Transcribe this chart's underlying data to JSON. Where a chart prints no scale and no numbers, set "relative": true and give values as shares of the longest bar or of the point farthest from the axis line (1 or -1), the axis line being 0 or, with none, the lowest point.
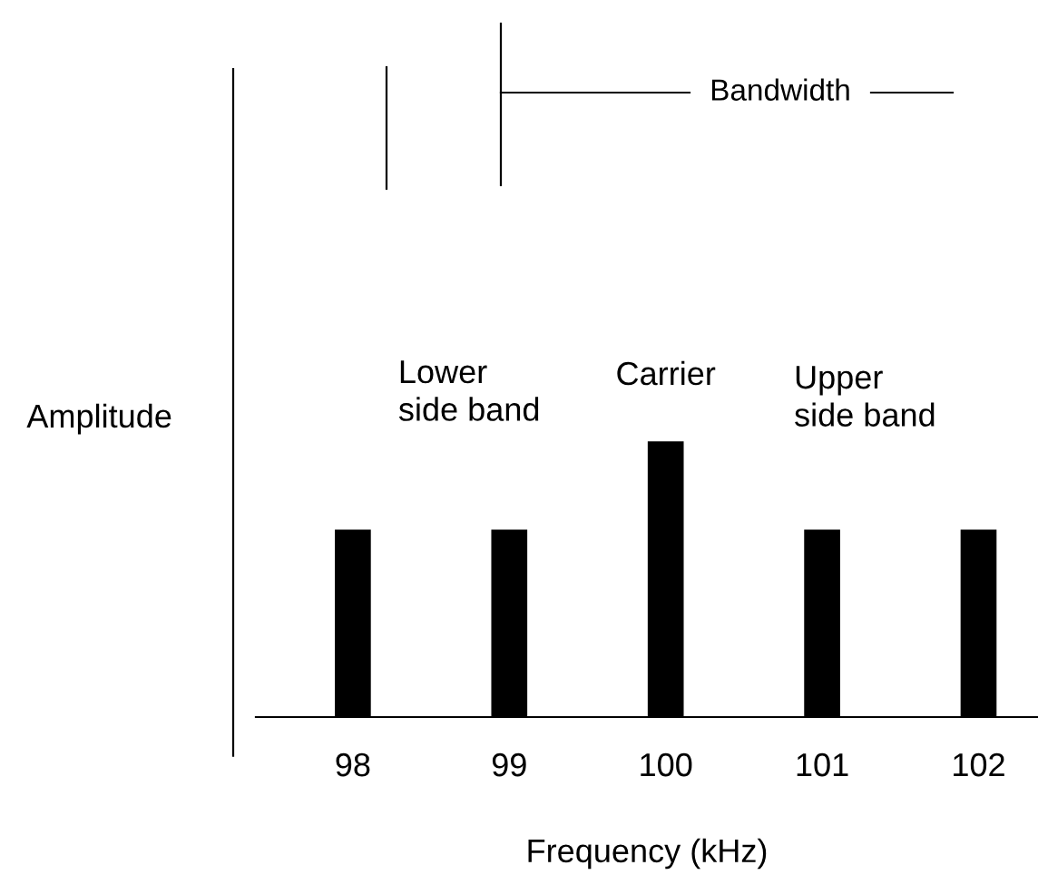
{
  "chart_data": {
    "type": "bar",
    "relative": true,
    "xlabel": "Frequency (kHz)",
    "ylabel": "Amplitude",
    "categories": [
      "98",
      "99",
      "100",
      "101",
      "102"
    ],
    "values": [
      0.68,
      0.68,
      1,
      0.68,
      0.68
    ],
    "color": "#000000",
    "annotations": [
      "Lower\nside band",
      "Carrier",
      "Upper\nside band",
      "Bandwidth"
    ],
    "grid": false,
    "legend": false
  }
}
